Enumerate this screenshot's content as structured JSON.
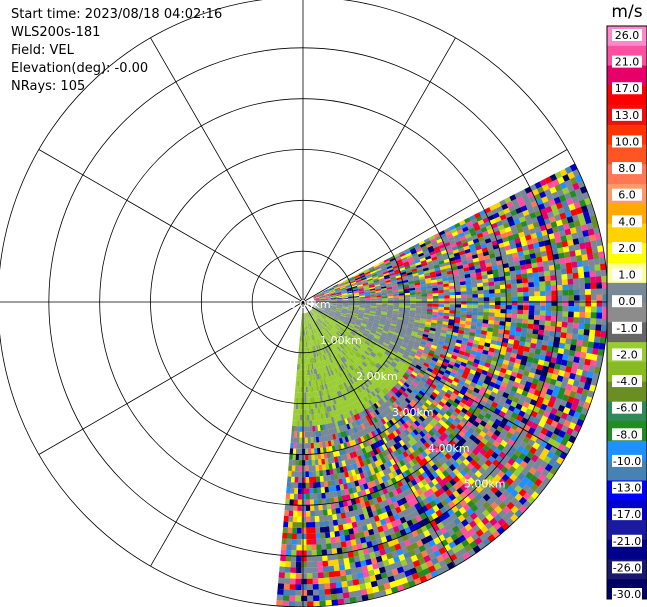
{
  "header": {
    "start_time": "Start time: 2023/08/18 04:02:16",
    "instrument": "WLS200s-181",
    "field": "Field: VEL",
    "elevation": "Elevation(deg): -0.00",
    "nrays": "NRays: 105"
  },
  "chart_data": {
    "type": "heatmap",
    "projection": "polar-ppi",
    "field": "VEL",
    "unit": "m/s",
    "range_rings_km": [
      0.0,
      1.0,
      2.0,
      3.0,
      4.0,
      5.0
    ],
    "range_ring_labels": [
      "0.00km",
      "1.00km",
      "2.00km",
      "3.00km",
      "4.00km",
      "5.00km"
    ],
    "max_range_km": 6.0,
    "azimuth_lines_deg": [
      0,
      30,
      60,
      90,
      120,
      150,
      180,
      210,
      240,
      270,
      300,
      330
    ],
    "scan_sector_deg": [
      63,
      185
    ],
    "elevation_deg": -0.0,
    "nrays": 105,
    "colorbar": {
      "label": "m/s",
      "ticks": [
        "26.0",
        "21.0",
        "17.0",
        "13.0",
        "10.0",
        "8.0",
        "6.0",
        "4.0",
        "2.0",
        "1.0",
        "0.0",
        "-1.0",
        "-2.0",
        "-4.0",
        "-6.0",
        "-8.0",
        "-10.0",
        "-13.0",
        "-17.0",
        "-21.0",
        "-26.0",
        "-30.0"
      ],
      "colors": [
        "#ff88cc",
        "#ff4fa0",
        "#e8006a",
        "#ff0000",
        "#ee1010",
        "#ff3300",
        "#ff5522",
        "#ff7755",
        "#ff9966",
        "#ffaa00",
        "#ffd200",
        "#ffff00",
        "#ffff99",
        "#778899",
        "#8c8c8c",
        "#666666",
        "#99cc33",
        "#88bb22",
        "#6b8e23",
        "#2e8b57",
        "#228b22",
        "#1e90ff",
        "#4682b4",
        "#0000ff",
        "#0000cd",
        "#1a1aa0",
        "#00008b",
        "#191970",
        "#000066"
      ]
    }
  }
}
